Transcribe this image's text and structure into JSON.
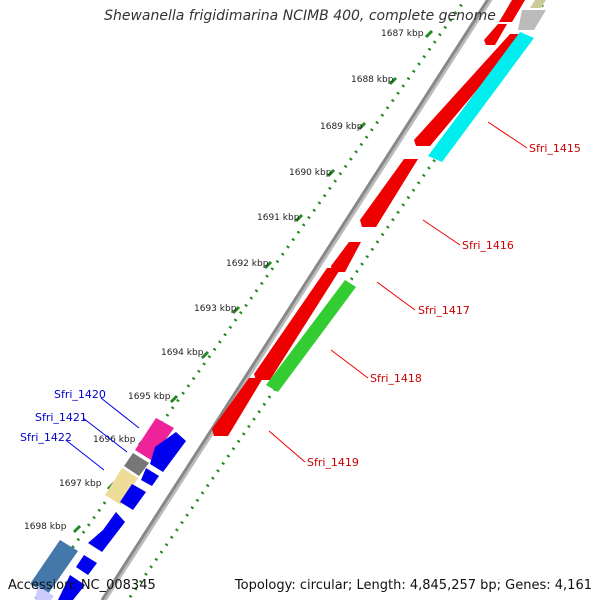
{
  "title": "Shewanella frigidimarina NCIMB 400, complete genome",
  "footer": {
    "accession": "Accession: NC_008345",
    "summary": "Topology: circular; Length: 4,845,257 bp; Genes: 4,161"
  },
  "ticks": [
    "1687 kbp",
    "1688 kbp",
    "1689 kbp",
    "1690 kbp",
    "1691 kbp",
    "1692 kbp",
    "1693 kbp",
    "1694 kbp",
    "1695 kbp",
    "1696 kbp",
    "1697 kbp",
    "1698 kbp"
  ],
  "gene_labels_right": [
    "Sfri_1415",
    "Sfri_1416",
    "Sfri_1417",
    "Sfri_1418",
    "Sfri_1419"
  ],
  "gene_labels_left": [
    "Sfri_1420",
    "Sfri_1421",
    "Sfri_1422"
  ],
  "colors": {
    "red": "#ee0000",
    "cyan": "#00eeee",
    "green": "#33cc33",
    "blue": "#0000ee",
    "pink": "#ee2299",
    "gray": "#777777",
    "khaki": "#eedd99",
    "steelblue": "#4477aa",
    "lavender": "#ccccff",
    "label_red": "#cc0000",
    "label_blue": "#0000cc",
    "dots": "#228822"
  }
}
